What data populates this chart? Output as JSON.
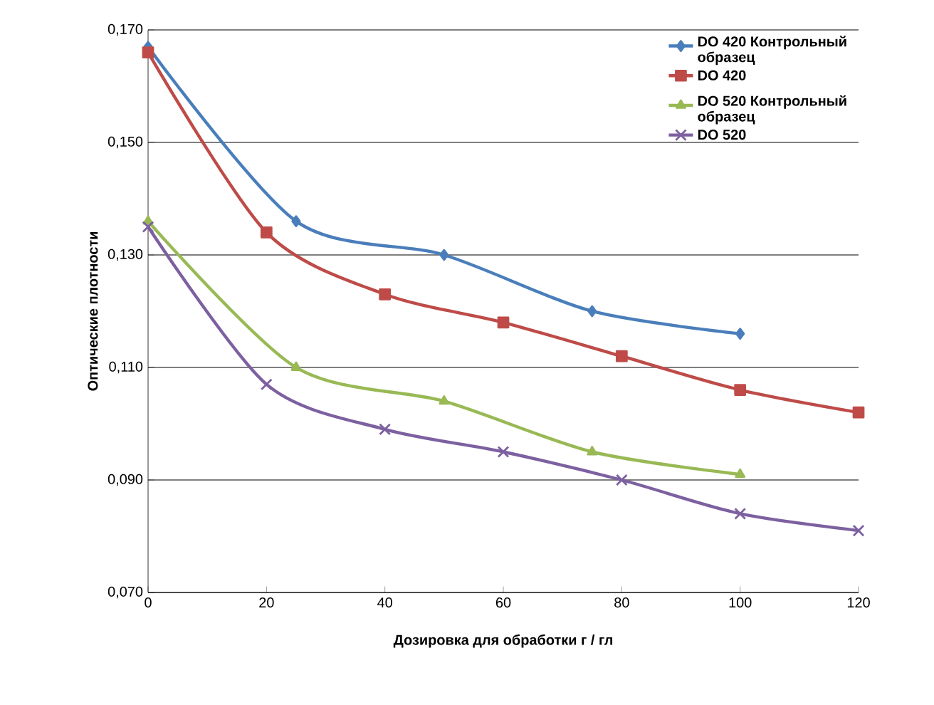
{
  "chart_data": {
    "type": "line",
    "xlabel": "Дозировка для обработки г / гл",
    "ylabel": "Оптические плотности",
    "xlim": [
      0,
      120
    ],
    "xticks": [
      0,
      20,
      40,
      60,
      80,
      100,
      120
    ],
    "ylim": [
      0.07,
      0.17
    ],
    "yticks": [
      {
        "value": 0.07,
        "label": "0,070"
      },
      {
        "value": 0.09,
        "label": "0,090"
      },
      {
        "value": 0.11,
        "label": "0,110"
      },
      {
        "value": 0.13,
        "label": "0,130"
      },
      {
        "value": 0.15,
        "label": "0,150"
      },
      {
        "value": 0.17,
        "label": "0,170"
      }
    ],
    "grid": "y",
    "legend": "top right",
    "series": [
      {
        "name": "DO 420 Контрольный образец",
        "color": "#4a7ebb",
        "marker": "diamond",
        "x": [
          0,
          25,
          50,
          75,
          100
        ],
        "values": [
          0.167,
          0.136,
          0.13,
          0.12,
          0.116
        ]
      },
      {
        "name": "DO 420",
        "color": "#be4b48",
        "marker": "square",
        "x": [
          0,
          20,
          40,
          60,
          80,
          100,
          120
        ],
        "values": [
          0.166,
          0.134,
          0.123,
          0.118,
          0.112,
          0.106,
          0.102
        ]
      },
      {
        "name": "DO 520 Контрольный образец",
        "color": "#98b954",
        "marker": "triangle",
        "x": [
          0,
          25,
          50,
          75,
          100
        ],
        "values": [
          0.136,
          0.11,
          0.104,
          0.095,
          0.091
        ]
      },
      {
        "name": "DO 520",
        "color": "#7d60a0",
        "marker": "cross",
        "x": [
          0,
          20,
          40,
          60,
          80,
          100,
          120
        ],
        "values": [
          0.135,
          0.107,
          0.099,
          0.095,
          0.09,
          0.084,
          0.081
        ]
      }
    ]
  }
}
